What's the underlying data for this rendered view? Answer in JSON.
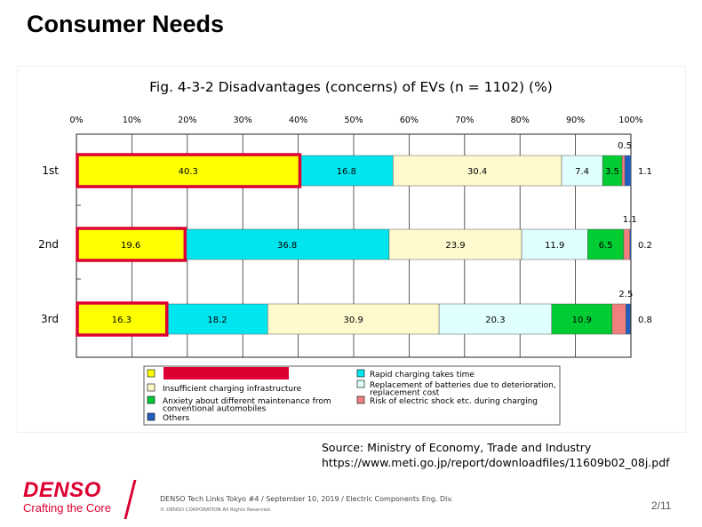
{
  "slide": {
    "title": "Consumer Needs",
    "source_line1": "Source: Ministry of Economy, Trade and Industry",
    "source_line2": "https://www.meti.go.jp/report/downloadfiles/11609b02_08j.pdf",
    "footer_line": "DENSO Tech Links Tokyo #4  / September 10, 2019 / Electric Components Eng. Div.",
    "footer_copyright": "© DENSO CORPORATION All Rights Reserved.",
    "page_number": "2/11",
    "logo_text": "DENSO",
    "logo_tagline": "Crafting the Core"
  },
  "chart_data": {
    "type": "stacked-bar-horizontal",
    "title": "Fig. 4-3-2  Disadvantages (concerns) of EVs (n = 1102) (%)",
    "x_ticks": [
      "0%",
      "10%",
      "20%",
      "30%",
      "40%",
      "50%",
      "60%",
      "70%",
      "80%",
      "90%",
      "100%"
    ],
    "xlim": [
      0,
      100
    ],
    "categories": [
      "1st",
      "2nd",
      "3rd"
    ],
    "series": [
      {
        "values": [
          40.3,
          19.6,
          16.3
        ],
        "color": "#ffff00"
      },
      {
        "name": "Rapid charging takes time",
        "values": [
          16.8,
          36.8,
          18.2
        ],
        "color": "#00e5ee"
      },
      {
        "name": "Insufficient charging infrastructure",
        "values": [
          30.4,
          23.9,
          30.9
        ],
        "color": "#fffacd"
      },
      {
        "name": "Replacement of batteries due to deterioration, replacement cost",
        "values": [
          7.4,
          11.9,
          20.3
        ],
        "color": "#e0ffff"
      },
      {
        "name": "Anxiety about different maintenance from conventional automobiles",
        "values": [
          3.5,
          6.5,
          10.9
        ],
        "color": "#00cc33"
      },
      {
        "name": "Risk of electric shock etc. during charging",
        "values": [
          0.5,
          1.1,
          2.5
        ],
        "color": "#f08080"
      },
      {
        "name": "Others",
        "values": [
          1.1,
          0.2,
          0.8
        ],
        "color": "#1f5fbf"
      }
    ],
    "value_labels": [
      [
        "40.3",
        "16.8",
        "30.4",
        "7.4",
        "3.5",
        "0.5",
        "1.1"
      ],
      [
        "19.6",
        "36.8",
        "23.9",
        "11.9",
        "6.5",
        "1.1",
        "0.2"
      ],
      [
        "16.3",
        "18.2",
        "30.9",
        "20.3",
        "10.9",
        "2.5",
        "0.8"
      ]
    ],
    "highlight_series": 0,
    "highlight_color": "#dc0032",
    "legend": {
      "placement": "bottom",
      "left_items": [
        {
          "label": "",
          "series": 0,
          "redacted": true
        },
        {
          "label": "Insufficient charging infrastructure",
          "series": 2
        },
        {
          "label": "Anxiety about different maintenance from conventional automobiles",
          "series": 4
        },
        {
          "label": "Others",
          "series": 6
        }
      ],
      "right_items": [
        {
          "label": "Rapid charging takes time",
          "series": 1
        },
        {
          "label": "Replacement of batteries due to deterioration, replacement cost",
          "series": 3
        },
        {
          "label": "Risk of electric shock etc. during charging",
          "series": 5
        }
      ]
    },
    "grid": true
  }
}
